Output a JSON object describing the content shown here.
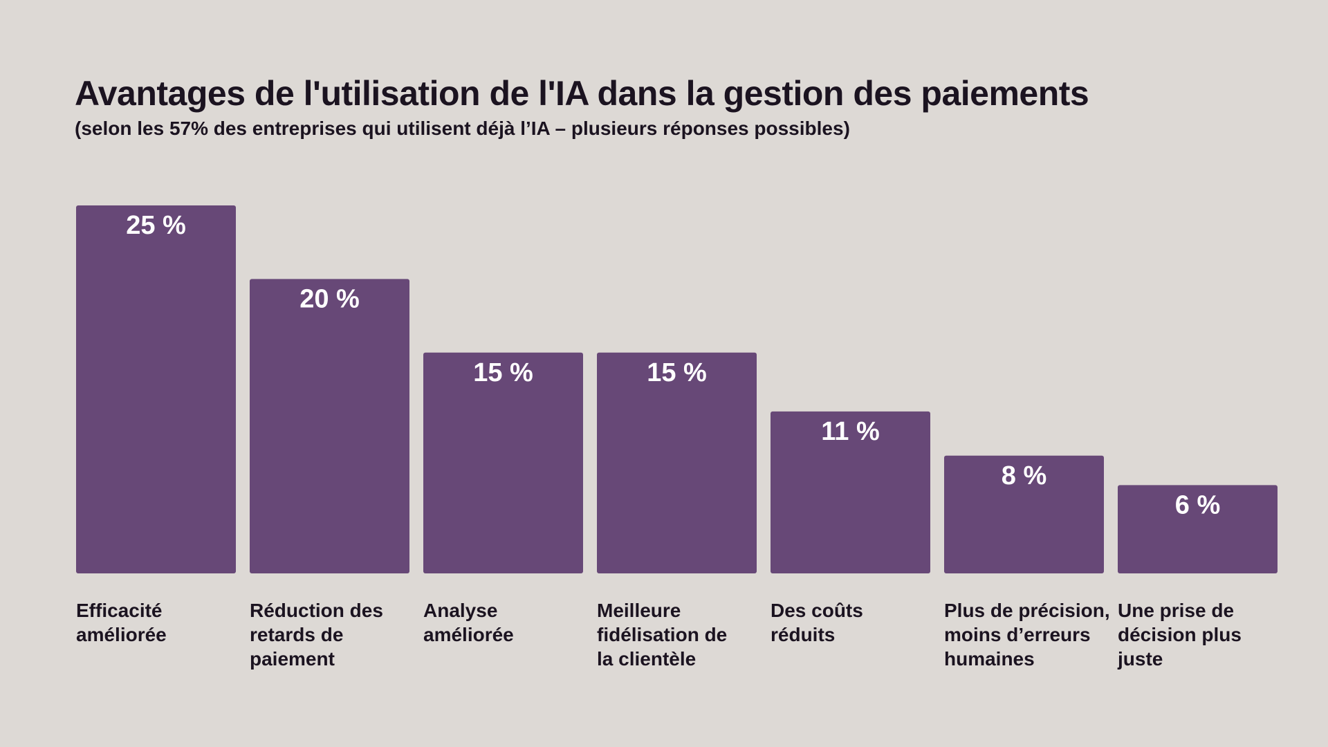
{
  "colors": {
    "background": "#ddd9d5",
    "bar": "#674877",
    "bar_label": "#ffffff",
    "text": "#1b1320"
  },
  "chart_data": {
    "type": "bar",
    "title": "Avantages de l'utilisation de l'IA dans la gestion des paiements",
    "subtitle": "(selon les 57% des entreprises qui utilisent déjà l’IA – plusieurs réponses possibles)",
    "xlabel": "",
    "ylabel": "",
    "ylim": [
      0,
      25
    ],
    "categories": [
      [
        "Efficacité",
        "améliorée"
      ],
      [
        "Réduction des",
        "retards de",
        "paiement"
      ],
      [
        "Analyse",
        "améliorée"
      ],
      [
        "Meilleure",
        "fidélisation de",
        "la clientèle"
      ],
      [
        "Des coûts",
        "réduits"
      ],
      [
        "Plus de précision,",
        "moins d’erreurs",
        "humaines"
      ],
      [
        "Une prise de",
        "décision plus",
        "juste"
      ]
    ],
    "values": [
      25,
      20,
      15,
      15,
      11,
      8,
      6
    ],
    "value_labels": [
      "25 %",
      "20 %",
      "15 %",
      "15 %",
      "11 %",
      "8 %",
      "6 %"
    ]
  }
}
